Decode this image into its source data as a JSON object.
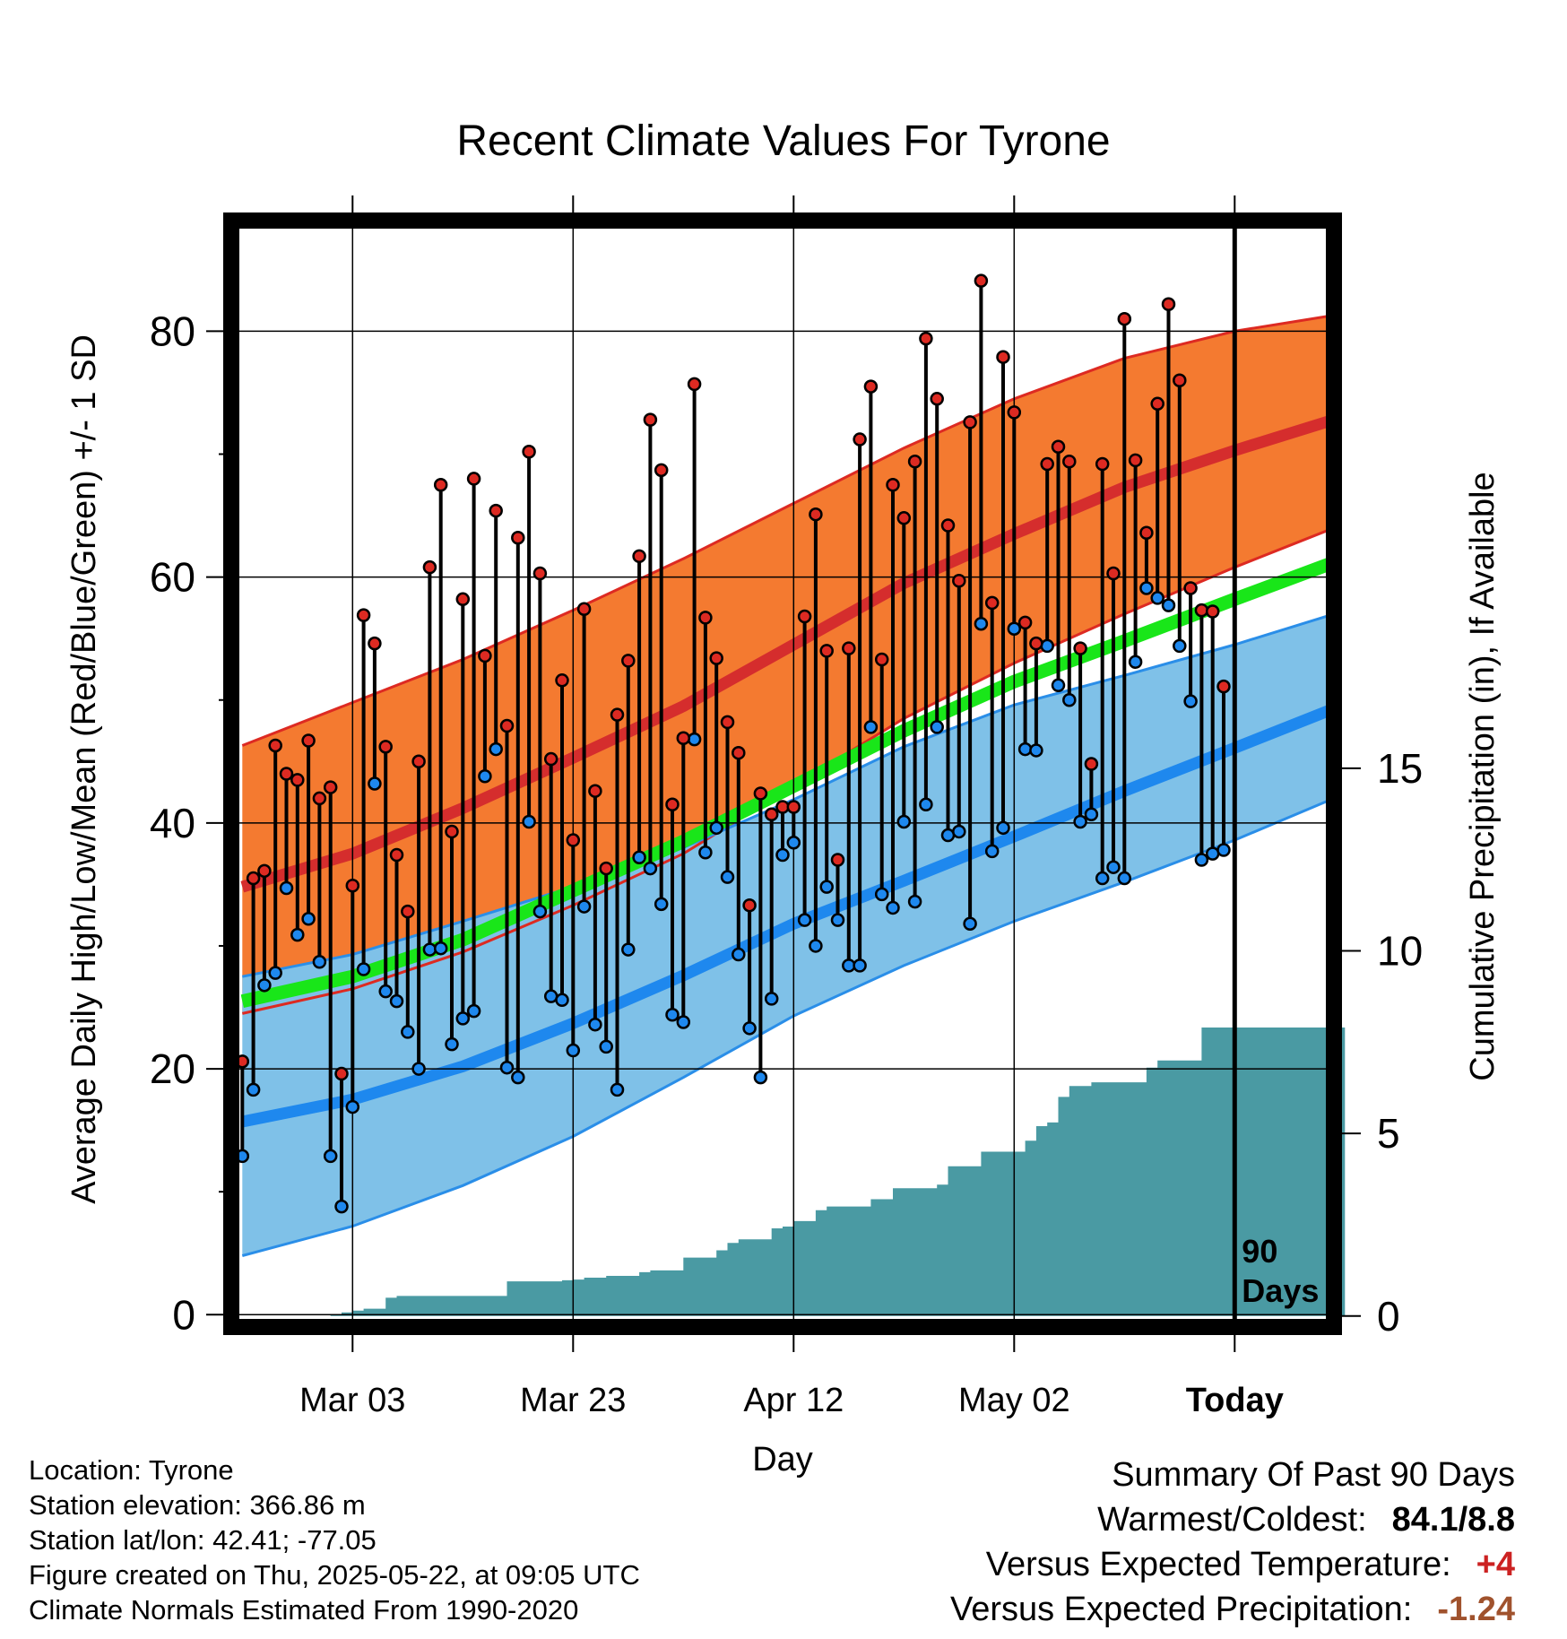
{
  "chart_data": {
    "type": "line",
    "title": "Recent Climate Values For Tyrone",
    "xlabel": "Day",
    "ylabel": "Average Daily High/Low/Mean (Red/Blue/Green) +/- 1 SD",
    "y2label": "Cumulative Precipitation (in), If Available",
    "x_tick_labels": [
      "Mar 03",
      "Mar 23",
      "Apr 12",
      "May 02",
      "Today"
    ],
    "x_tick_days": [
      10,
      30,
      50,
      70,
      90
    ],
    "y_ticks": [
      0,
      20,
      40,
      60,
      80
    ],
    "y2_ticks": [
      0,
      5,
      10,
      15
    ],
    "ylim": [
      -1,
      89
    ],
    "xlim": [
      -1,
      99
    ],
    "y2lim": [
      -0.3,
      30
    ],
    "grid": true,
    "today_marker": {
      "day": 90,
      "label_line1": "90",
      "label_line2": "Days"
    },
    "colors": {
      "high_band": "#f47a30",
      "high_edge": "#dd2a22",
      "high_mean": "#d52d2d",
      "low_band": "#7fc1e8",
      "low_edge": "#2a8ee8",
      "low_mean": "#1e88ee",
      "mean_line": "#19e619",
      "precip": "#4a9aa3",
      "high_dot": "#dd2a22",
      "low_dot": "#1e88ee"
    },
    "normals": {
      "days": [
        0,
        10,
        20,
        30,
        40,
        50,
        60,
        70,
        80,
        90,
        99
      ],
      "high_mean": [
        34.8,
        37.5,
        41.2,
        45.3,
        49.5,
        54.5,
        59.5,
        63.5,
        67.3,
        70.3,
        72.8
      ],
      "high_upper": [
        46.3,
        49.8,
        53.3,
        57.3,
        61.5,
        66.0,
        70.5,
        74.5,
        77.8,
        80.0,
        81.3
      ],
      "high_lower": [
        24.5,
        26.5,
        29.5,
        33.3,
        37.5,
        43.0,
        48.5,
        53.0,
        57.0,
        60.8,
        64.0
      ],
      "low_mean": [
        15.7,
        17.5,
        20.2,
        23.7,
        27.6,
        31.8,
        35.3,
        38.9,
        42.6,
        46.1,
        49.3
      ],
      "low_upper": [
        27.5,
        29.3,
        32.0,
        34.8,
        38.0,
        41.9,
        46.2,
        49.6,
        52.0,
        54.5,
        57.0
      ],
      "low_lower": [
        4.8,
        7.2,
        10.5,
        14.5,
        19.3,
        24.3,
        28.4,
        32.0,
        35.2,
        38.6,
        42.0
      ],
      "mean": [
        25.5,
        27.5,
        30.5,
        34.5,
        38.5,
        43.0,
        47.5,
        51.5,
        54.8,
        58.2,
        61.2
      ]
    },
    "series": [
      {
        "name": "High",
        "values": [
          20.6,
          35.5,
          36.1,
          46.3,
          44.0,
          43.5,
          46.7,
          42.0,
          42.9,
          19.6,
          34.9,
          56.9,
          54.6,
          46.2,
          37.4,
          32.8,
          45.0,
          60.8,
          67.5,
          39.3,
          58.2,
          68.0,
          53.6,
          65.4,
          47.9,
          63.2,
          70.2,
          60.3,
          45.2,
          51.6,
          38.6,
          57.4,
          42.6,
          36.3,
          48.8,
          53.2,
          61.7,
          72.8,
          68.7,
          41.5,
          46.9,
          75.7,
          56.7,
          53.4,
          48.2,
          45.7,
          33.3,
          42.4,
          40.7,
          41.3,
          41.3,
          56.8,
          65.1,
          54.0,
          37.0,
          54.2,
          71.2,
          75.5,
          53.3,
          67.5,
          64.8,
          69.4,
          79.4,
          74.5,
          64.2,
          59.7,
          72.6,
          84.1,
          57.9,
          77.9,
          73.4,
          56.3,
          54.6,
          69.2,
          70.6,
          69.4,
          54.2,
          44.8,
          69.2,
          60.3,
          81.0,
          69.5,
          63.6,
          74.1,
          82.2,
          76.0,
          59.1,
          57.3,
          57.2,
          51.1
        ]
      },
      {
        "name": "Low",
        "values": [
          12.9,
          18.3,
          26.8,
          27.8,
          34.7,
          30.9,
          32.2,
          28.7,
          12.9,
          8.8,
          16.9,
          28.1,
          43.2,
          26.3,
          25.5,
          23.0,
          20.0,
          29.7,
          29.8,
          22.0,
          24.1,
          24.7,
          43.8,
          46.0,
          20.1,
          19.3,
          40.1,
          32.8,
          25.9,
          25.6,
          21.5,
          33.2,
          23.6,
          21.8,
          18.3,
          29.7,
          37.2,
          36.3,
          33.4,
          24.4,
          23.8,
          46.8,
          37.6,
          39.6,
          35.6,
          29.3,
          23.3,
          19.3,
          25.7,
          37.4,
          38.4,
          32.1,
          30.0,
          34.8,
          32.1,
          28.4,
          28.4,
          47.8,
          34.2,
          33.1,
          40.1,
          33.6,
          41.5,
          47.8,
          39.0,
          39.3,
          31.8,
          56.2,
          37.7,
          39.6,
          55.8,
          46.0,
          45.9,
          54.4,
          51.2,
          50.0,
          40.1,
          40.7,
          35.5,
          36.4,
          35.5,
          53.1,
          59.1,
          58.3,
          57.7,
          54.4,
          49.9,
          37.0,
          37.5,
          37.8
        ]
      },
      {
        "name": "Cumulative Precipitation",
        "values": [
          0.0,
          0.0,
          0.0,
          0.0,
          0.0,
          0.0,
          0.0,
          0.0,
          0.05,
          0.1,
          0.15,
          0.2,
          0.2,
          0.5,
          0.55,
          0.55,
          0.55,
          0.55,
          0.55,
          0.55,
          0.55,
          0.55,
          0.55,
          0.55,
          0.95,
          0.95,
          0.95,
          0.95,
          0.95,
          0.98,
          1.0,
          1.05,
          1.05,
          1.1,
          1.1,
          1.1,
          1.2,
          1.25,
          1.25,
          1.25,
          1.6,
          1.6,
          1.6,
          1.8,
          2.0,
          2.1,
          2.1,
          2.1,
          2.4,
          2.45,
          2.6,
          2.6,
          2.9,
          3.0,
          3.0,
          3.0,
          3.0,
          3.2,
          3.2,
          3.5,
          3.5,
          3.5,
          3.5,
          3.6,
          4.1,
          4.1,
          4.1,
          4.5,
          4.5,
          4.5,
          4.5,
          4.8,
          5.2,
          5.3,
          6.0,
          6.3,
          6.3,
          6.4,
          6.4,
          6.4,
          6.4,
          6.4,
          6.8,
          7.0,
          7.0,
          7.0,
          7.0,
          7.9,
          7.9,
          7.9,
          7.9,
          7.9,
          7.9,
          7.9,
          7.9,
          7.9,
          7.9,
          7.9,
          7.9,
          7.9
        ]
      }
    ]
  },
  "info": {
    "location": "Location: Tyrone",
    "elevation": "Station elevation: 366.86 m",
    "latlon": "Station lat/lon: 42.41; -77.05",
    "created": "Figure created on Thu, 2025-05-22, at 09:05 UTC",
    "normals": "Climate Normals Estimated From 1990-2020"
  },
  "summary": {
    "heading": "Summary Of Past 90 Days",
    "warmest_coldest_label": "Warmest/Coldest:",
    "warmest_coldest_value": "84.1/8.8",
    "temp_label": "Versus Expected Temperature:",
    "temp_value": "+4",
    "temp_color": "#cc2222",
    "precip_label": "Versus Expected Precipitation:",
    "precip_value": "-1.24",
    "precip_color": "#a0522d"
  }
}
